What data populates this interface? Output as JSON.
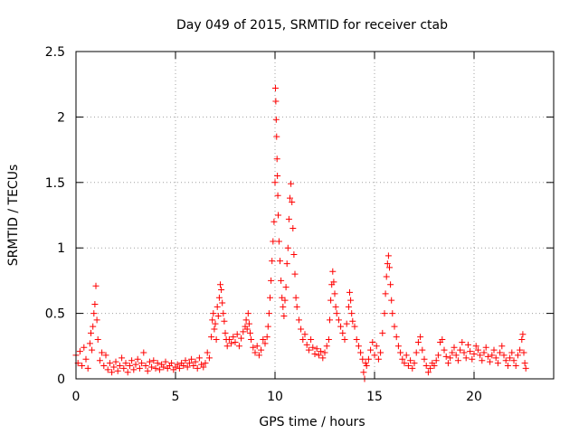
{
  "chart_data": {
    "type": "scatter",
    "title": "Day 049 of 2015, SRMTID for receiver ctab",
    "xlabel": "GPS time / hours",
    "ylabel": "SRMTID / TECUs",
    "xlim": [
      0,
      24
    ],
    "ylim": [
      0,
      2.5
    ],
    "x_ticks": [
      0,
      5,
      10,
      15,
      20
    ],
    "y_ticks": [
      0,
      0.5,
      1,
      1.5,
      2,
      2.5
    ],
    "x_tick_labels": [
      "0",
      "5",
      "10",
      "15",
      "20"
    ],
    "y_tick_labels": [
      "0",
      "0.5",
      "1",
      "1.5",
      "2",
      "2.5"
    ],
    "grid": true,
    "marker": "+",
    "series": [
      {
        "name": "SRMTID",
        "color": "#ff0000",
        "points": [
          [
            0.0,
            0.18
          ],
          [
            0.1,
            0.12
          ],
          [
            0.2,
            0.21
          ],
          [
            0.3,
            0.1
          ],
          [
            0.4,
            0.24
          ],
          [
            0.5,
            0.15
          ],
          [
            0.6,
            0.08
          ],
          [
            0.7,
            0.27
          ],
          [
            0.75,
            0.35
          ],
          [
            0.8,
            0.22
          ],
          [
            0.85,
            0.4
          ],
          [
            0.9,
            0.5
          ],
          [
            0.95,
            0.57
          ],
          [
            1.0,
            0.71
          ],
          [
            1.05,
            0.45
          ],
          [
            1.1,
            0.3
          ],
          [
            1.2,
            0.14
          ],
          [
            1.3,
            0.2
          ],
          [
            1.4,
            0.1
          ],
          [
            1.5,
            0.18
          ],
          [
            1.6,
            0.07
          ],
          [
            1.7,
            0.12
          ],
          [
            1.8,
            0.05
          ],
          [
            1.9,
            0.09
          ],
          [
            2.0,
            0.13
          ],
          [
            2.1,
            0.06
          ],
          [
            2.2,
            0.1
          ],
          [
            2.3,
            0.16
          ],
          [
            2.4,
            0.08
          ],
          [
            2.5,
            0.12
          ],
          [
            2.6,
            0.05
          ],
          [
            2.7,
            0.1
          ],
          [
            2.8,
            0.14
          ],
          [
            2.9,
            0.07
          ],
          [
            3.0,
            0.11
          ],
          [
            3.1,
            0.15
          ],
          [
            3.2,
            0.08
          ],
          [
            3.3,
            0.12
          ],
          [
            3.4,
            0.2
          ],
          [
            3.5,
            0.1
          ],
          [
            3.6,
            0.06
          ],
          [
            3.7,
            0.13
          ],
          [
            3.8,
            0.09
          ],
          [
            3.9,
            0.14
          ],
          [
            4.0,
            0.08
          ],
          [
            4.1,
            0.12
          ],
          [
            4.2,
            0.07
          ],
          [
            4.3,
            0.11
          ],
          [
            4.4,
            0.09
          ],
          [
            4.5,
            0.13
          ],
          [
            4.6,
            0.08
          ],
          [
            4.7,
            0.1
          ],
          [
            4.8,
            0.12
          ],
          [
            4.9,
            0.07
          ],
          [
            5.0,
            0.09
          ],
          [
            5.1,
            0.11
          ],
          [
            5.2,
            0.08
          ],
          [
            5.3,
            0.12
          ],
          [
            5.4,
            0.1
          ],
          [
            5.5,
            0.14
          ],
          [
            5.6,
            0.09
          ],
          [
            5.7,
            0.12
          ],
          [
            5.8,
            0.15
          ],
          [
            5.9,
            0.1
          ],
          [
            6.0,
            0.13
          ],
          [
            6.1,
            0.08
          ],
          [
            6.2,
            0.16
          ],
          [
            6.3,
            0.11
          ],
          [
            6.4,
            0.09
          ],
          [
            6.5,
            0.12
          ],
          [
            6.6,
            0.2
          ],
          [
            6.7,
            0.16
          ],
          [
            6.8,
            0.32
          ],
          [
            6.85,
            0.45
          ],
          [
            6.9,
            0.5
          ],
          [
            6.95,
            0.38
          ],
          [
            7.0,
            0.42
          ],
          [
            7.05,
            0.3
          ],
          [
            7.1,
            0.55
          ],
          [
            7.15,
            0.48
          ],
          [
            7.2,
            0.62
          ],
          [
            7.25,
            0.72
          ],
          [
            7.3,
            0.68
          ],
          [
            7.35,
            0.58
          ],
          [
            7.4,
            0.5
          ],
          [
            7.45,
            0.44
          ],
          [
            7.5,
            0.35
          ],
          [
            7.55,
            0.3
          ],
          [
            7.6,
            0.25
          ],
          [
            7.7,
            0.3
          ],
          [
            7.8,
            0.27
          ],
          [
            7.9,
            0.32
          ],
          [
            8.0,
            0.28
          ],
          [
            8.1,
            0.34
          ],
          [
            8.2,
            0.25
          ],
          [
            8.3,
            0.31
          ],
          [
            8.4,
            0.36
          ],
          [
            8.5,
            0.4
          ],
          [
            8.55,
            0.45
          ],
          [
            8.6,
            0.38
          ],
          [
            8.65,
            0.5
          ],
          [
            8.7,
            0.42
          ],
          [
            8.75,
            0.35
          ],
          [
            8.8,
            0.3
          ],
          [
            8.9,
            0.24
          ],
          [
            9.0,
            0.2
          ],
          [
            9.1,
            0.25
          ],
          [
            9.2,
            0.18
          ],
          [
            9.3,
            0.22
          ],
          [
            9.4,
            0.3
          ],
          [
            9.5,
            0.27
          ],
          [
            9.6,
            0.32
          ],
          [
            9.65,
            0.4
          ],
          [
            9.7,
            0.5
          ],
          [
            9.75,
            0.62
          ],
          [
            9.8,
            0.75
          ],
          [
            9.85,
            0.9
          ],
          [
            9.9,
            1.05
          ],
          [
            9.95,
            1.2
          ],
          [
            10.0,
            1.5
          ],
          [
            10.02,
            2.22
          ],
          [
            10.04,
            2.12
          ],
          [
            10.06,
            1.98
          ],
          [
            10.08,
            1.85
          ],
          [
            10.1,
            1.68
          ],
          [
            10.12,
            1.55
          ],
          [
            10.14,
            1.4
          ],
          [
            10.16,
            1.25
          ],
          [
            10.2,
            1.05
          ],
          [
            10.25,
            0.9
          ],
          [
            10.3,
            0.75
          ],
          [
            10.35,
            0.62
          ],
          [
            10.4,
            0.55
          ],
          [
            10.45,
            0.48
          ],
          [
            10.5,
            0.6
          ],
          [
            10.55,
            0.7
          ],
          [
            10.6,
            0.88
          ],
          [
            10.65,
            1.0
          ],
          [
            10.7,
            1.22
          ],
          [
            10.75,
            1.38
          ],
          [
            10.8,
            1.49
          ],
          [
            10.85,
            1.35
          ],
          [
            10.9,
            1.15
          ],
          [
            10.95,
            0.95
          ],
          [
            11.0,
            0.8
          ],
          [
            11.05,
            0.62
          ],
          [
            11.1,
            0.55
          ],
          [
            11.2,
            0.45
          ],
          [
            11.3,
            0.38
          ],
          [
            11.4,
            0.3
          ],
          [
            11.5,
            0.34
          ],
          [
            11.6,
            0.26
          ],
          [
            11.7,
            0.22
          ],
          [
            11.8,
            0.3
          ],
          [
            11.9,
            0.24
          ],
          [
            12.0,
            0.19
          ],
          [
            12.1,
            0.23
          ],
          [
            12.2,
            0.18
          ],
          [
            12.3,
            0.21
          ],
          [
            12.4,
            0.16
          ],
          [
            12.5,
            0.2
          ],
          [
            12.6,
            0.25
          ],
          [
            12.7,
            0.3
          ],
          [
            12.75,
            0.45
          ],
          [
            12.8,
            0.6
          ],
          [
            12.85,
            0.72
          ],
          [
            12.9,
            0.82
          ],
          [
            12.95,
            0.74
          ],
          [
            13.0,
            0.65
          ],
          [
            13.05,
            0.55
          ],
          [
            13.1,
            0.5
          ],
          [
            13.2,
            0.45
          ],
          [
            13.3,
            0.4
          ],
          [
            13.4,
            0.35
          ],
          [
            13.5,
            0.3
          ],
          [
            13.6,
            0.42
          ],
          [
            13.7,
            0.55
          ],
          [
            13.75,
            0.66
          ],
          [
            13.8,
            0.6
          ],
          [
            13.85,
            0.5
          ],
          [
            13.9,
            0.44
          ],
          [
            14.0,
            0.4
          ],
          [
            14.1,
            0.3
          ],
          [
            14.2,
            0.25
          ],
          [
            14.3,
            0.2
          ],
          [
            14.4,
            0.15
          ],
          [
            14.45,
            0.05
          ],
          [
            14.5,
            0.0
          ],
          [
            14.55,
            0.12
          ],
          [
            14.6,
            0.1
          ],
          [
            14.7,
            0.15
          ],
          [
            14.8,
            0.22
          ],
          [
            14.9,
            0.28
          ],
          [
            15.0,
            0.18
          ],
          [
            15.1,
            0.25
          ],
          [
            15.2,
            0.15
          ],
          [
            15.3,
            0.2
          ],
          [
            15.4,
            0.35
          ],
          [
            15.5,
            0.5
          ],
          [
            15.55,
            0.65
          ],
          [
            15.6,
            0.78
          ],
          [
            15.65,
            0.88
          ],
          [
            15.7,
            0.94
          ],
          [
            15.75,
            0.85
          ],
          [
            15.8,
            0.72
          ],
          [
            15.85,
            0.6
          ],
          [
            15.9,
            0.5
          ],
          [
            16.0,
            0.4
          ],
          [
            16.1,
            0.32
          ],
          [
            16.2,
            0.25
          ],
          [
            16.3,
            0.2
          ],
          [
            16.4,
            0.15
          ],
          [
            16.5,
            0.12
          ],
          [
            16.6,
            0.18
          ],
          [
            16.7,
            0.1
          ],
          [
            16.8,
            0.14
          ],
          [
            16.9,
            0.08
          ],
          [
            17.0,
            0.12
          ],
          [
            17.1,
            0.2
          ],
          [
            17.2,
            0.28
          ],
          [
            17.3,
            0.32
          ],
          [
            17.4,
            0.22
          ],
          [
            17.5,
            0.15
          ],
          [
            17.6,
            0.1
          ],
          [
            17.7,
            0.05
          ],
          [
            17.8,
            0.08
          ],
          [
            17.9,
            0.12
          ],
          [
            18.0,
            0.1
          ],
          [
            18.1,
            0.14
          ],
          [
            18.2,
            0.18
          ],
          [
            18.3,
            0.28
          ],
          [
            18.4,
            0.3
          ],
          [
            18.5,
            0.22
          ],
          [
            18.6,
            0.17
          ],
          [
            18.7,
            0.12
          ],
          [
            18.8,
            0.16
          ],
          [
            18.9,
            0.2
          ],
          [
            19.0,
            0.24
          ],
          [
            19.1,
            0.18
          ],
          [
            19.2,
            0.14
          ],
          [
            19.3,
            0.22
          ],
          [
            19.4,
            0.28
          ],
          [
            19.5,
            0.2
          ],
          [
            19.6,
            0.16
          ],
          [
            19.7,
            0.26
          ],
          [
            19.8,
            0.21
          ],
          [
            19.9,
            0.15
          ],
          [
            20.0,
            0.19
          ],
          [
            20.1,
            0.25
          ],
          [
            20.2,
            0.22
          ],
          [
            20.3,
            0.18
          ],
          [
            20.4,
            0.14
          ],
          [
            20.5,
            0.2
          ],
          [
            20.6,
            0.24
          ],
          [
            20.7,
            0.17
          ],
          [
            20.8,
            0.13
          ],
          [
            20.9,
            0.18
          ],
          [
            21.0,
            0.22
          ],
          [
            21.1,
            0.16
          ],
          [
            21.2,
            0.12
          ],
          [
            21.3,
            0.2
          ],
          [
            21.4,
            0.25
          ],
          [
            21.5,
            0.18
          ],
          [
            21.6,
            0.14
          ],
          [
            21.7,
            0.1
          ],
          [
            21.8,
            0.16
          ],
          [
            21.9,
            0.2
          ],
          [
            22.0,
            0.14
          ],
          [
            22.1,
            0.1
          ],
          [
            22.2,
            0.18
          ],
          [
            22.3,
            0.22
          ],
          [
            22.4,
            0.3
          ],
          [
            22.45,
            0.34
          ],
          [
            22.5,
            0.2
          ],
          [
            22.55,
            0.12
          ],
          [
            22.6,
            0.08
          ]
        ]
      }
    ]
  }
}
